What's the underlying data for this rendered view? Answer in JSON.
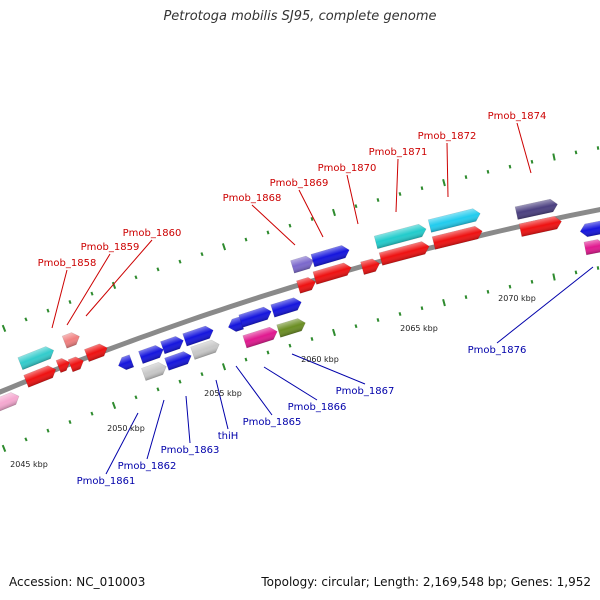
{
  "title": "Petrotoga mobilis SJ95, complete genome",
  "footer": {
    "accession": "Accession: NC_010003",
    "summary": "Topology: circular; Length: 2,169,548 bp; Genes: 1,952"
  },
  "colors": {
    "top_label": "#cc0000",
    "bottom_label": "#0000aa",
    "backbone": "#8a8a8a",
    "tick": "#2e8b2e"
  },
  "ruler": [
    {
      "label": "2045 kbp"
    },
    {
      "label": "2050 kbp"
    },
    {
      "label": "2055 kbp"
    },
    {
      "label": "2060 kbp"
    },
    {
      "label": "2065 kbp"
    },
    {
      "label": "2070 kbp"
    }
  ],
  "top_genes": [
    {
      "label": "Pmob_1858"
    },
    {
      "label": "Pmob_1859"
    },
    {
      "label": "Pmob_1860"
    },
    {
      "label": "Pmob_1868"
    },
    {
      "label": "Pmob_1869"
    },
    {
      "label": "Pmob_1870"
    },
    {
      "label": "Pmob_1871"
    },
    {
      "label": "Pmob_1872"
    },
    {
      "label": "Pmob_1874"
    }
  ],
  "bottom_genes": [
    {
      "label": "Pmob_1861"
    },
    {
      "label": "Pmob_1862"
    },
    {
      "label": "Pmob_1863"
    },
    {
      "label": "thiH"
    },
    {
      "label": "Pmob_1865"
    },
    {
      "label": "Pmob_1866"
    },
    {
      "label": "Pmob_1867"
    },
    {
      "label": "Pmob_1876"
    }
  ]
}
